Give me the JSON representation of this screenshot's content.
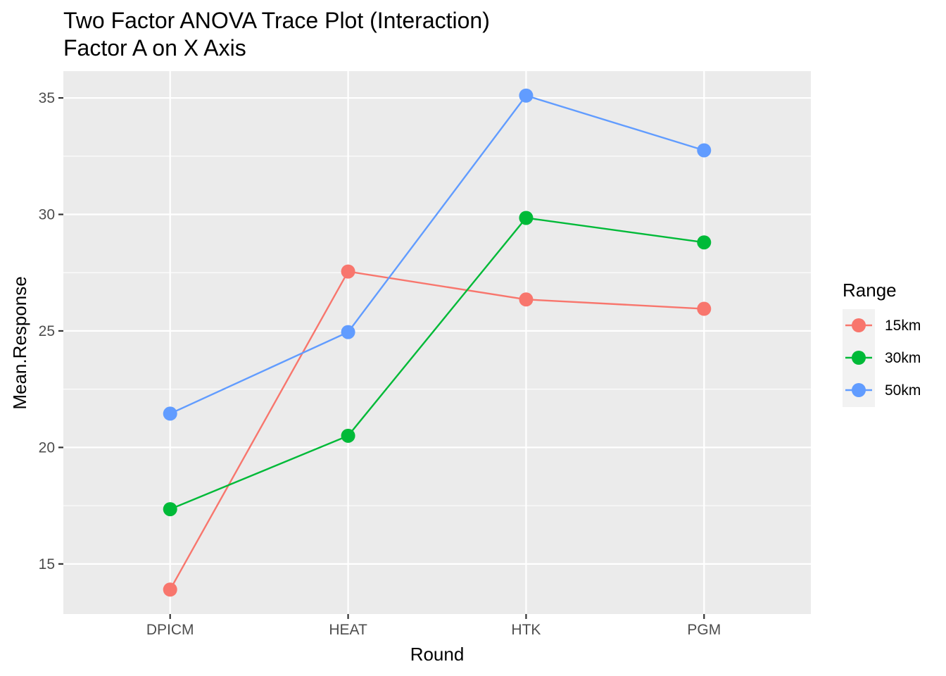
{
  "chart_data": {
    "type": "line",
    "title": "Two Factor ANOVA Trace Plot (Interaction)",
    "subtitle": "Factor A on X Axis",
    "xlabel": "Round",
    "ylabel": "Mean.Response",
    "categories": [
      "DPICM",
      "HEAT",
      "HTK",
      "PGM"
    ],
    "ylim": [
      12.85,
      36.15
    ],
    "yticks": [
      15,
      20,
      25,
      30,
      35
    ],
    "ytick_labels": [
      "15",
      "20",
      "25",
      "30",
      "35"
    ],
    "grid": true,
    "panel_background": "#ebebeb",
    "legend": {
      "title": "Range",
      "position": "right"
    },
    "series": [
      {
        "name": "15km",
        "color": "#F8766D",
        "values": [
          13.9,
          27.55,
          26.35,
          25.95
        ]
      },
      {
        "name": "30km",
        "color": "#00BA38",
        "values": [
          17.35,
          20.5,
          29.85,
          28.8
        ]
      },
      {
        "name": "50km",
        "color": "#619CFF",
        "values": [
          21.45,
          24.95,
          35.1,
          32.75
        ]
      }
    ]
  }
}
